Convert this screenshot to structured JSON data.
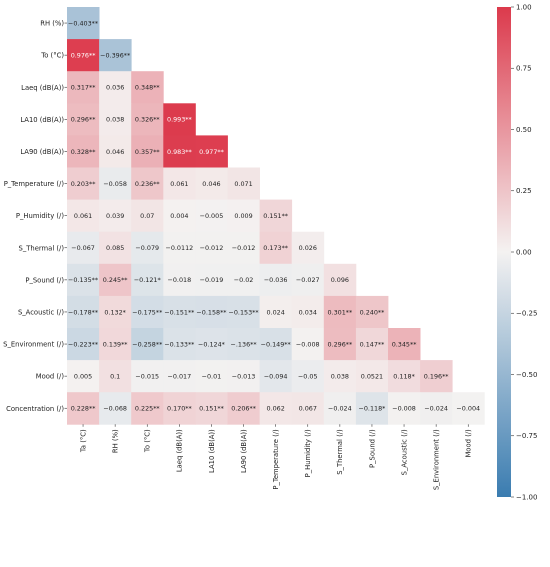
{
  "chart_data": {
    "type": "heatmap",
    "title": "",
    "row_labels": [
      "RH (%)",
      "To (°C)",
      "Laeq (dB(A))",
      "LA10 (dB(A))",
      "LA90 (dB(A))",
      "P_Temperature (/)",
      "P_Humidity  (/)",
      "S_Thermal  (/)",
      "P_Sound  (/)",
      "S_Acoustic  (/)",
      "S_Environment  (/)",
      "Mood  (/)",
      "Concentration  (/)"
    ],
    "col_labels": [
      "Ta (°C)",
      "RH (%)",
      "To (°C)",
      "Laeq (dB(A))",
      "LA10 (dB(A))",
      "LA90 (dB(A))",
      "P_Temperature  (/)",
      "P_Humidity  (/)",
      "S_Thermal  (/)",
      "P_Sound  (/)",
      "S_Acoustic  (/)",
      "S_Environment  (/)",
      "Mood  (/)"
    ],
    "rows": [
      [
        {
          "v": -0.403,
          "t": "−0.403**"
        }
      ],
      [
        {
          "v": 0.976,
          "t": "0.976**"
        },
        {
          "v": -0.396,
          "t": "−0.396**"
        }
      ],
      [
        {
          "v": 0.317,
          "t": "0.317**"
        },
        {
          "v": 0.036,
          "t": "0.036"
        },
        {
          "v": 0.348,
          "t": "0.348**"
        }
      ],
      [
        {
          "v": 0.296,
          "t": "0.296**"
        },
        {
          "v": 0.038,
          "t": "0.038"
        },
        {
          "v": 0.326,
          "t": "0.326**"
        },
        {
          "v": 0.993,
          "t": "0.993**"
        }
      ],
      [
        {
          "v": 0.328,
          "t": "0.328**"
        },
        {
          "v": 0.046,
          "t": "0.046"
        },
        {
          "v": 0.357,
          "t": "0.357**"
        },
        {
          "v": 0.983,
          "t": "0.983**"
        },
        {
          "v": 0.977,
          "t": "0.977**"
        }
      ],
      [
        {
          "v": 0.203,
          "t": "0.203**"
        },
        {
          "v": -0.058,
          "t": "−0.058"
        },
        {
          "v": 0.236,
          "t": "0.236**"
        },
        {
          "v": 0.061,
          "t": "0.061"
        },
        {
          "v": 0.046,
          "t": "0.046"
        },
        {
          "v": 0.071,
          "t": "0.071"
        }
      ],
      [
        {
          "v": 0.061,
          "t": "0.061"
        },
        {
          "v": 0.039,
          "t": "0.039"
        },
        {
          "v": 0.07,
          "t": "0.07"
        },
        {
          "v": 0.004,
          "t": "0.004"
        },
        {
          "v": -0.005,
          "t": "−0.005"
        },
        {
          "v": 0.009,
          "t": "0.009"
        },
        {
          "v": 0.151,
          "t": "0.151**"
        }
      ],
      [
        {
          "v": -0.067,
          "t": "−0.067"
        },
        {
          "v": 0.085,
          "t": "0.085"
        },
        {
          "v": -0.079,
          "t": "−0.079"
        },
        {
          "v": -0.0112,
          "t": "−0.0112"
        },
        {
          "v": -0.012,
          "t": "−0.012"
        },
        {
          "v": -0.012,
          "t": "−0.012"
        },
        {
          "v": 0.173,
          "t": "0.173**"
        },
        {
          "v": 0.026,
          "t": "0.026"
        }
      ],
      [
        {
          "v": -0.135,
          "t": "−0.135**"
        },
        {
          "v": 0.245,
          "t": "0.245**"
        },
        {
          "v": -0.121,
          "t": "−0.121*"
        },
        {
          "v": -0.018,
          "t": "−0.018"
        },
        {
          "v": -0.019,
          "t": "−0.019"
        },
        {
          "v": -0.02,
          "t": "−0.02"
        },
        {
          "v": -0.036,
          "t": "−0.036"
        },
        {
          "v": -0.027,
          "t": "−0.027"
        },
        {
          "v": 0.096,
          "t": "0.096"
        }
      ],
      [
        {
          "v": -0.178,
          "t": "−0.178**"
        },
        {
          "v": 0.132,
          "t": "0.132*"
        },
        {
          "v": -0.175,
          "t": "−0.175**"
        },
        {
          "v": -0.151,
          "t": "−0.151**"
        },
        {
          "v": -0.158,
          "t": "−0.158**"
        },
        {
          "v": -0.153,
          "t": "−0.153**"
        },
        {
          "v": 0.024,
          "t": "0.024"
        },
        {
          "v": 0.034,
          "t": "0.034"
        },
        {
          "v": 0.301,
          "t": "0.301**"
        },
        {
          "v": 0.24,
          "t": "0.240**"
        }
      ],
      [
        {
          "v": -0.223,
          "t": "−0.223**"
        },
        {
          "v": 0.139,
          "t": "0.139**"
        },
        {
          "v": -0.258,
          "t": "−0.258**"
        },
        {
          "v": -0.133,
          "t": "−0.133**"
        },
        {
          "v": -0.124,
          "t": "−0.124*"
        },
        {
          "v": -0.136,
          "t": "−.136**"
        },
        {
          "v": -0.149,
          "t": "−0.149**"
        },
        {
          "v": -0.008,
          "t": "−0.008"
        },
        {
          "v": 0.296,
          "t": "0.296**"
        },
        {
          "v": 0.147,
          "t": "0.147**"
        },
        {
          "v": 0.345,
          "t": "0.345**"
        }
      ],
      [
        {
          "v": 0.005,
          "t": "0.005"
        },
        {
          "v": 0.1,
          "t": "0.1"
        },
        {
          "v": -0.015,
          "t": "−0.015"
        },
        {
          "v": -0.017,
          "t": "−0.017"
        },
        {
          "v": -0.01,
          "t": "−0.01"
        },
        {
          "v": -0.013,
          "t": "−0.013"
        },
        {
          "v": -0.094,
          "t": "−0.094"
        },
        {
          "v": -0.05,
          "t": "−0.05"
        },
        {
          "v": 0.038,
          "t": "0.038"
        },
        {
          "v": 0.0521,
          "t": "0.0521"
        },
        {
          "v": 0.118,
          "t": "0.118*"
        },
        {
          "v": 0.196,
          "t": "0.196**"
        }
      ],
      [
        {
          "v": 0.228,
          "t": "0.228**"
        },
        {
          "v": -0.068,
          "t": "−0.068"
        },
        {
          "v": 0.225,
          "t": "0.225**"
        },
        {
          "v": 0.17,
          "t": "0.170**"
        },
        {
          "v": 0.151,
          "t": "0.151**"
        },
        {
          "v": 0.206,
          "t": "0.206**"
        },
        {
          "v": 0.062,
          "t": "0.062"
        },
        {
          "v": 0.067,
          "t": "0.067"
        },
        {
          "v": -0.024,
          "t": "−0.024"
        },
        {
          "v": -0.118,
          "t": "−0.118*"
        },
        {
          "v": -0.008,
          "t": "−0.008"
        },
        {
          "v": -0.024,
          "t": "−0.024"
        },
        {
          "v": -0.004,
          "t": "−0.004"
        }
      ]
    ],
    "colorbar": {
      "range": [
        -1.0,
        1.0
      ],
      "ticks": [
        -1.0,
        -0.75,
        -0.5,
        -0.25,
        0.0,
        0.25,
        0.5,
        0.75,
        1.0
      ],
      "tick_labels": [
        "−1.00",
        "−0.75",
        "−0.50",
        "−0.25",
        "0.00",
        "0.25",
        "0.50",
        "0.75",
        "1.00"
      ],
      "colors": {
        "negative": "#3a7cb0",
        "neutral": "#f4f2f1",
        "positive": "#dc3a4c"
      }
    }
  }
}
